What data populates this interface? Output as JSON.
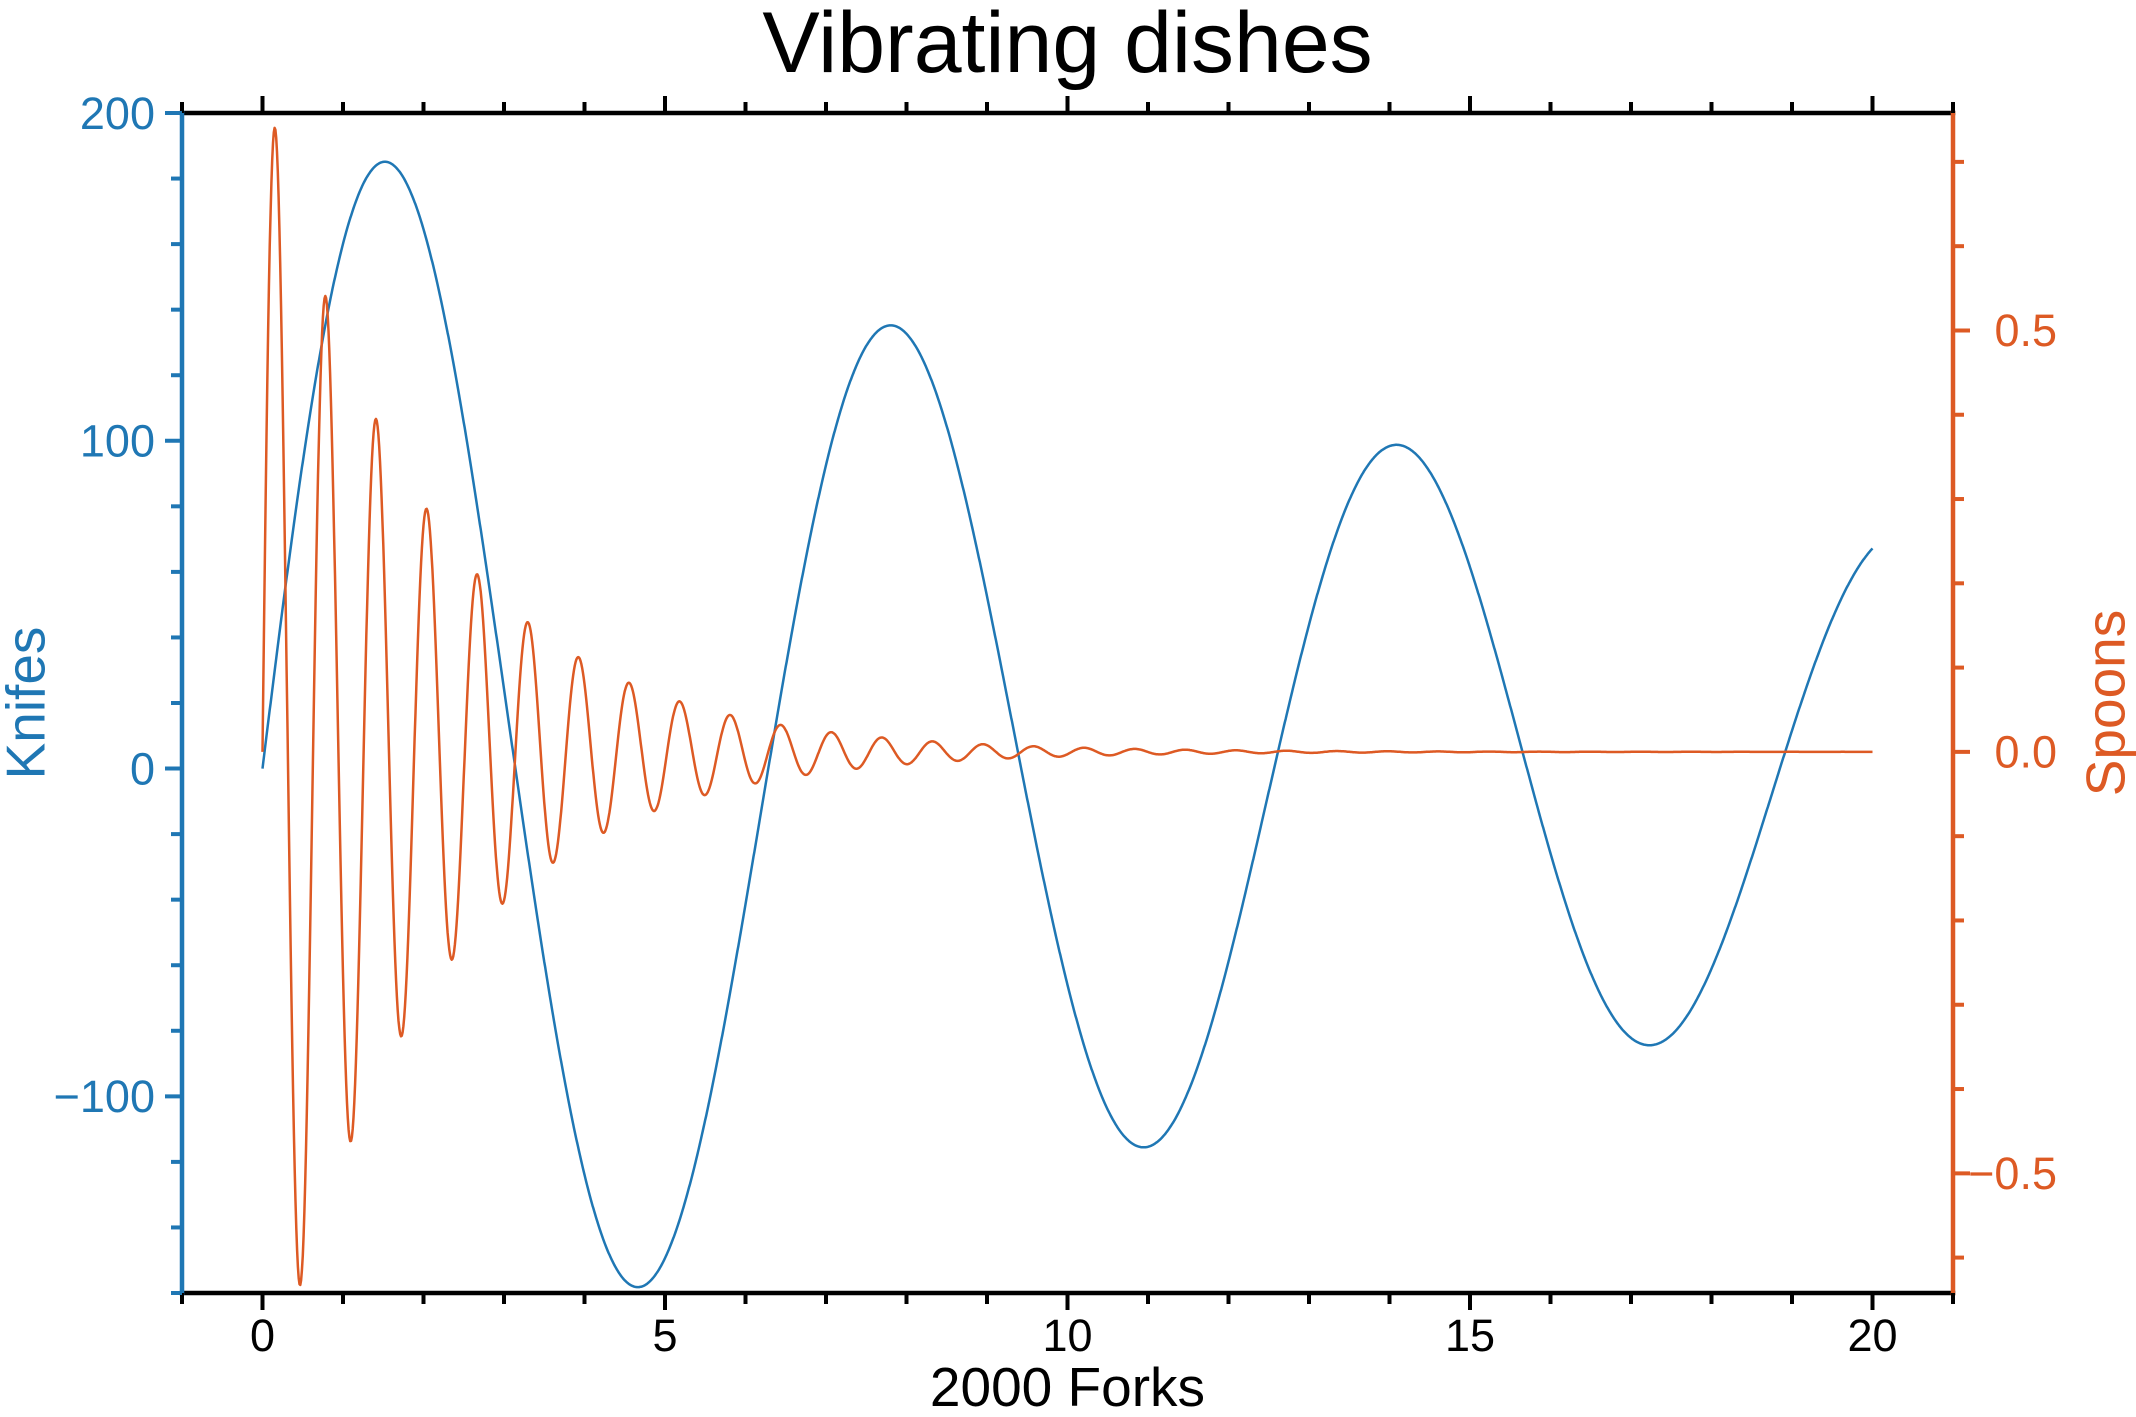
{
  "chart_data": {
    "type": "line",
    "title": "Vibrating dishes",
    "xlabel": "2000 Forks",
    "grid": false,
    "legend": "none",
    "frame_color": "#000000",
    "x_axis": {
      "lim": [
        -1,
        21
      ],
      "major_ticks": [
        {
          "v": 0,
          "label": "0"
        },
        {
          "v": 5,
          "label": "5"
        },
        {
          "v": 10,
          "label": "10"
        },
        {
          "v": 15,
          "label": "15"
        },
        {
          "v": 20,
          "label": "20"
        }
      ],
      "minor_step": 1,
      "mirrored_top": true,
      "color": "#000000"
    },
    "left_axis": {
      "label": "Knifes",
      "lim": [
        -160,
        200
      ],
      "major_ticks": [
        {
          "v": 200,
          "label": "200"
        },
        {
          "v": 100,
          "label": "100"
        },
        {
          "v": 0,
          "label": "0"
        },
        {
          "v": -100,
          "label": "−100"
        }
      ],
      "minor_step": 20,
      "color": "#1f77b4"
    },
    "right_axis": {
      "label": "Spoons",
      "lim": [
        -0.642,
        0.758
      ],
      "major_ticks": [
        {
          "v": 0.5,
          "label": "0.5"
        },
        {
          "v": 0.0,
          "label": "0.0"
        },
        {
          "v": -0.5,
          "label": "−0.5"
        }
      ],
      "minor_step": 0.1,
      "color": "#dd5a24"
    },
    "series": [
      {
        "name": "Knifes",
        "axis": "left",
        "color": "#1f77b4",
        "formula": "y = 200 * exp(-0.05*x) * sin(x)",
        "amplitude": 200,
        "decay": 0.05,
        "omega": 1,
        "x_start": 0,
        "x_end": 20,
        "x_step": 0.01,
        "line_width": 2.5
      },
      {
        "name": "Spoons",
        "axis": "right",
        "color": "#dd5a24",
        "formula": "y = 0.8 * exp(-0.5*x) * sin(10*x)",
        "amplitude": 0.8,
        "decay": 0.5,
        "omega": 10,
        "x_start": 0,
        "x_end": 20,
        "x_step": 0.01,
        "line_width": 2.5
      }
    ]
  }
}
